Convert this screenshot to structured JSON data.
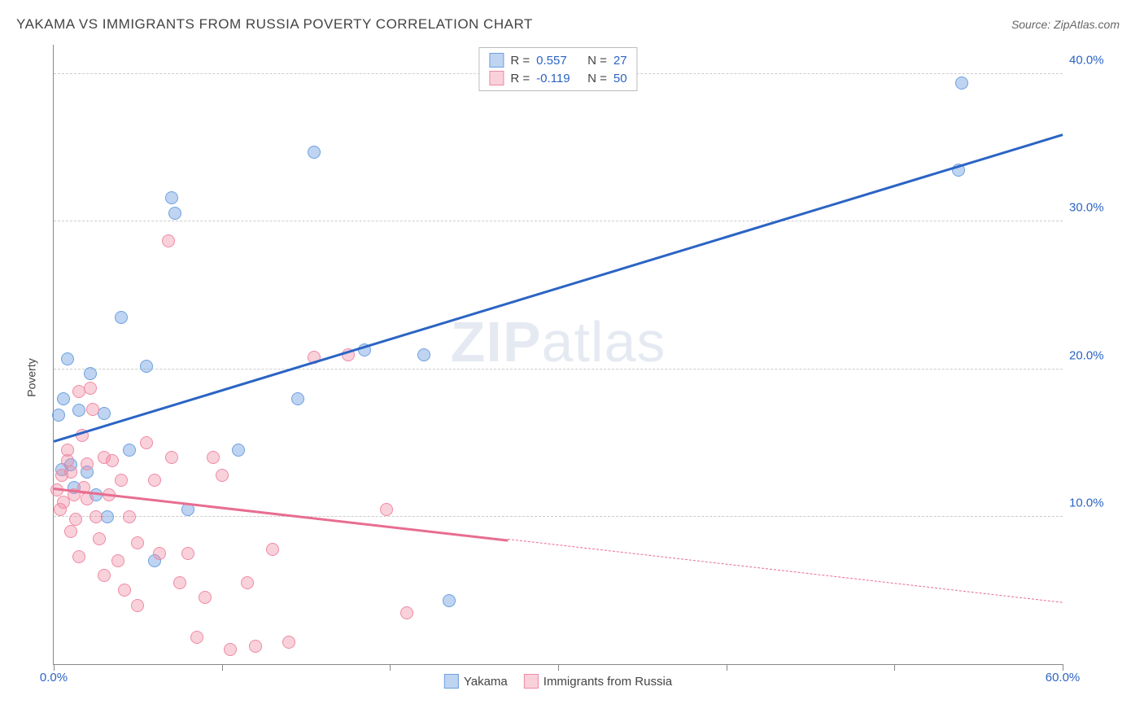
{
  "header": {
    "title": "YAKAMA VS IMMIGRANTS FROM RUSSIA POVERTY CORRELATION CHART",
    "source_prefix": "Source: ",
    "source_name": "ZipAtlas.com"
  },
  "chart": {
    "type": "scatter",
    "ylabel": "Poverty",
    "xlim": [
      0,
      60
    ],
    "ylim": [
      0,
      42
    ],
    "xlim_labels": {
      "min": "0.0%",
      "max": "60.0%"
    },
    "ytick_values": [
      10,
      20,
      30,
      40
    ],
    "ytick_labels": [
      "10.0%",
      "20.0%",
      "30.0%",
      "40.0%"
    ],
    "xtick_values": [
      0,
      10,
      20,
      30,
      40,
      50,
      60
    ],
    "grid_color": "#cccccc",
    "axis_color": "#888888",
    "background_color": "#ffffff",
    "watermark": {
      "bold": "ZIP",
      "light": "atlas"
    },
    "series": [
      {
        "name": "Yakama",
        "color_fill": "rgba(110,160,225,0.45)",
        "color_stroke": "#6ea0e1",
        "trend_color": "#2b64c4",
        "R": "0.557",
        "N": "27",
        "trend": {
          "x1": 0,
          "y1": 15.2,
          "x2": 60,
          "y2": 36.0,
          "solid_until_x": 60
        },
        "points": [
          [
            0.3,
            16.9
          ],
          [
            0.5,
            13.2
          ],
          [
            0.6,
            18.0
          ],
          [
            0.8,
            20.7
          ],
          [
            1.0,
            13.5
          ],
          [
            1.5,
            17.2
          ],
          [
            2.0,
            13.0
          ],
          [
            2.2,
            19.7
          ],
          [
            2.5,
            11.5
          ],
          [
            3.0,
            17.0
          ],
          [
            3.2,
            10.0
          ],
          [
            4.0,
            23.5
          ],
          [
            4.5,
            14.5
          ],
          [
            5.5,
            20.2
          ],
          [
            6.0,
            7.0
          ],
          [
            7.0,
            31.6
          ],
          [
            7.2,
            30.6
          ],
          [
            8.0,
            10.5
          ],
          [
            11.0,
            14.5
          ],
          [
            14.5,
            18.0
          ],
          [
            15.5,
            34.7
          ],
          [
            18.5,
            21.3
          ],
          [
            22.0,
            21.0
          ],
          [
            23.5,
            4.3
          ],
          [
            53.8,
            33.5
          ],
          [
            54.0,
            39.4
          ],
          [
            1.2,
            12.0
          ]
        ]
      },
      {
        "name": "Immigrants from Russia",
        "color_fill": "rgba(240,140,165,0.40)",
        "color_stroke": "#ef8aa5",
        "trend_color": "#e86d90",
        "R": "-0.119",
        "N": "50",
        "trend": {
          "x1": 0,
          "y1": 12.0,
          "x2": 60,
          "y2": 4.2,
          "solid_until_x": 27
        },
        "points": [
          [
            0.2,
            11.8
          ],
          [
            0.4,
            10.5
          ],
          [
            0.5,
            12.8
          ],
          [
            0.6,
            11.0
          ],
          [
            0.8,
            13.8
          ],
          [
            0.8,
            14.5
          ],
          [
            1.0,
            13.0
          ],
          [
            1.0,
            9.0
          ],
          [
            1.2,
            11.5
          ],
          [
            1.3,
            9.8
          ],
          [
            1.5,
            7.3
          ],
          [
            1.5,
            18.5
          ],
          [
            1.7,
            15.5
          ],
          [
            1.8,
            12.0
          ],
          [
            2.0,
            13.6
          ],
          [
            2.0,
            11.2
          ],
          [
            2.2,
            18.7
          ],
          [
            2.5,
            10.0
          ],
          [
            2.7,
            8.5
          ],
          [
            3.0,
            14.0
          ],
          [
            3.0,
            6.0
          ],
          [
            3.3,
            11.5
          ],
          [
            3.5,
            13.8
          ],
          [
            3.8,
            7.0
          ],
          [
            4.0,
            12.5
          ],
          [
            4.2,
            5.0
          ],
          [
            4.5,
            10.0
          ],
          [
            5.0,
            8.2
          ],
          [
            5.0,
            4.0
          ],
          [
            5.5,
            15.0
          ],
          [
            6.0,
            12.5
          ],
          [
            6.3,
            7.5
          ],
          [
            6.8,
            28.7
          ],
          [
            7.0,
            14.0
          ],
          [
            7.5,
            5.5
          ],
          [
            8.0,
            7.5
          ],
          [
            8.5,
            1.8
          ],
          [
            9.0,
            4.5
          ],
          [
            9.5,
            14.0
          ],
          [
            10.0,
            12.8
          ],
          [
            10.5,
            1.0
          ],
          [
            11.5,
            5.5
          ],
          [
            12.0,
            1.2
          ],
          [
            13.0,
            7.8
          ],
          [
            14.0,
            1.5
          ],
          [
            15.5,
            20.8
          ],
          [
            17.5,
            21.0
          ],
          [
            19.8,
            10.5
          ],
          [
            21.0,
            3.5
          ],
          [
            2.3,
            17.3
          ]
        ]
      }
    ],
    "legend_bottom": [
      {
        "label": "Yakama",
        "fill": "rgba(110,160,225,0.45)",
        "stroke": "#6ea0e1"
      },
      {
        "label": "Immigrants from Russia",
        "fill": "rgba(240,140,165,0.40)",
        "stroke": "#ef8aa5"
      }
    ],
    "legend_top_text_color": "#2b64c4",
    "xlim_label_color": "#2b64c4",
    "ytick_label_color": "#2b64c4"
  }
}
